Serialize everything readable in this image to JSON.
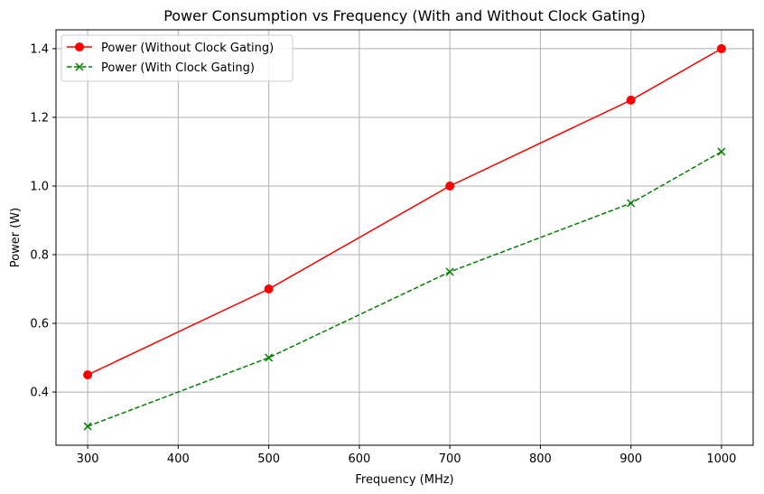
{
  "chart_data": {
    "type": "line",
    "title": "Power Consumption vs Frequency (With and Without Clock Gating)",
    "xlabel": "Frequency (MHz)",
    "ylabel": "Power (W)",
    "x": [
      300,
      500,
      700,
      900,
      1000
    ],
    "xlim": [
      265,
      1035
    ],
    "ylim": [
      0.245,
      1.455
    ],
    "xticks": [
      300,
      400,
      500,
      600,
      700,
      800,
      900,
      1000
    ],
    "yticks": [
      0.4,
      0.6,
      0.8,
      1.0,
      1.2,
      1.4
    ],
    "ytick_labels": [
      "0.4",
      "0.6",
      "0.8",
      "1.0",
      "1.2",
      "1.4"
    ],
    "grid": true,
    "legend_position": "top-left",
    "series": [
      {
        "name": "Power (Without Clock Gating)",
        "values": [
          0.45,
          0.7,
          1.0,
          1.25,
          1.4
        ],
        "color": "#ff0000",
        "linestyle": "solid",
        "marker": "circle"
      },
      {
        "name": "Power (With Clock Gating)",
        "values": [
          0.3,
          0.5,
          0.75,
          0.95,
          1.1
        ],
        "color": "#008000",
        "linestyle": "dashed",
        "marker": "x"
      }
    ]
  }
}
